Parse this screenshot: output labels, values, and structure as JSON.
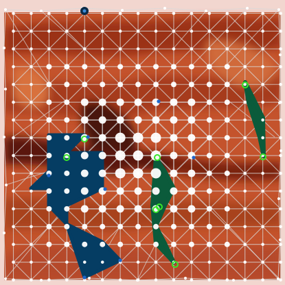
{
  "diagram": {
    "kind": "triangulated mesh overlay on heat-map terrain",
    "background_palette": [
      "#f0d2cc",
      "#c2502b",
      "#9a2f17",
      "#5a160c",
      "#3a0d07"
    ],
    "region_colors": {
      "blue": "#053d63",
      "green": "#0b5b3b"
    },
    "node_color": "#ffffff",
    "edge_color": "#d9d9d9",
    "marker_colors": {
      "green": "#39e62a",
      "blue": "#1f66c9",
      "dark": "#0c2a47"
    }
  }
}
